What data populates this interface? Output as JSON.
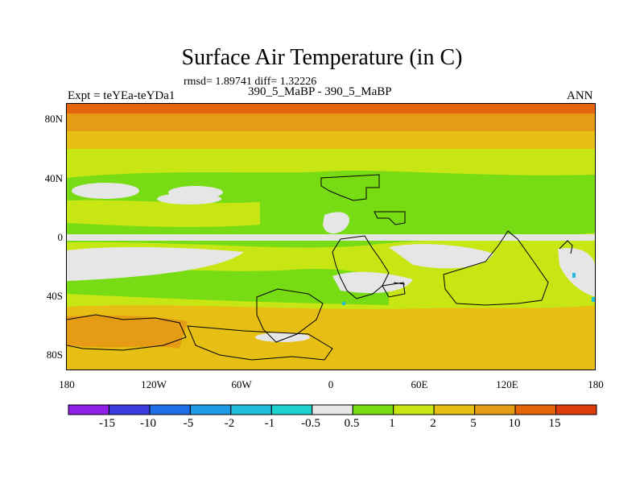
{
  "title": "Surface Air Temperature (in C)",
  "stats_line": "rmsd= 1.89741 diff= 1.32226",
  "subtitle": "390_5_MaBP - 390_5_MaBP",
  "expt_label": "Expt = teYEa-teYDa1",
  "season": "ANN",
  "lat_ticks": [
    "80N",
    "40N",
    "0",
    "40S",
    "80S"
  ],
  "lon_ticks": [
    "180",
    "120W",
    "60W",
    "0",
    "60E",
    "120E",
    "180"
  ],
  "colorbar": {
    "labels": [
      "-15",
      "-10",
      "-5",
      "-2",
      "-1",
      "-0.5",
      "0.5",
      "1",
      "2",
      "5",
      "10",
      "15"
    ],
    "colors": [
      "#8f1ee6",
      "#3c3ce0",
      "#1e6ee6",
      "#1e9be6",
      "#1ebedc",
      "#1ed2d2",
      "#e6e6e6",
      "#78dc14",
      "#c8e614",
      "#e6be14",
      "#e69b14",
      "#e6640a",
      "#dc3c0a"
    ]
  },
  "colors": {
    "land_outline": "#000000"
  }
}
